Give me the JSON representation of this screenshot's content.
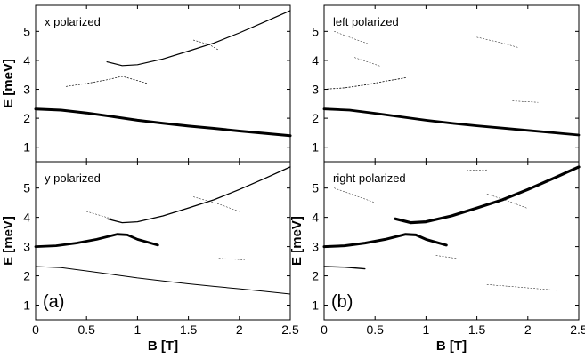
{
  "chart_data": [
    {
      "type": "scatter",
      "panel_text": "x polarized",
      "ylabel": "E [meV]",
      "xlabel": "",
      "corner_label": "",
      "xlim": [
        0,
        2.5
      ],
      "ylim": [
        0.5,
        5.9
      ],
      "y_ticks": [
        "1",
        "2",
        "3",
        "4",
        "5"
      ],
      "x_ticks": [],
      "series": [
        {
          "weight": 3.0,
          "points": [
            [
              0,
              2.32
            ],
            [
              0.25,
              2.28
            ],
            [
              0.5,
              2.18
            ],
            [
              0.75,
              2.06
            ],
            [
              1.0,
              1.93
            ],
            [
              1.25,
              1.83
            ],
            [
              1.5,
              1.73
            ],
            [
              1.75,
              1.65
            ],
            [
              2.0,
              1.56
            ],
            [
              2.25,
              1.48
            ],
            [
              2.5,
              1.4
            ]
          ]
        },
        {
          "weight": 0.7,
          "points": [
            [
              0.3,
              3.1
            ],
            [
              0.5,
              3.2
            ],
            [
              0.7,
              3.33
            ],
            [
              0.85,
              3.45
            ],
            [
              1.0,
              3.3
            ],
            [
              1.1,
              3.2
            ]
          ]
        },
        {
          "weight": 1.2,
          "points": [
            [
              0.7,
              3.95
            ],
            [
              0.85,
              3.82
            ],
            [
              1.0,
              3.85
            ],
            [
              1.25,
              4.05
            ],
            [
              1.5,
              4.32
            ],
            [
              1.75,
              4.6
            ],
            [
              2.0,
              4.95
            ],
            [
              2.25,
              5.33
            ],
            [
              2.5,
              5.72
            ]
          ]
        },
        {
          "weight": 0.6,
          "points": [
            [
              1.55,
              4.7
            ],
            [
              1.7,
              4.55
            ],
            [
              1.8,
              4.35
            ]
          ]
        }
      ]
    },
    {
      "type": "scatter",
      "panel_text": "left  polarized",
      "ylabel": "",
      "xlabel": "",
      "corner_label": "",
      "xlim": [
        0,
        2.5
      ],
      "ylim": [
        0.5,
        5.9
      ],
      "y_ticks": [
        "1",
        "2",
        "3",
        "4",
        "5"
      ],
      "x_ticks": [],
      "series": [
        {
          "weight": 2.8,
          "points": [
            [
              0,
              2.32
            ],
            [
              0.25,
              2.28
            ],
            [
              0.5,
              2.17
            ],
            [
              0.75,
              2.05
            ],
            [
              1.0,
              1.93
            ],
            [
              1.25,
              1.83
            ],
            [
              1.5,
              1.74
            ],
            [
              1.75,
              1.66
            ],
            [
              2.0,
              1.58
            ],
            [
              2.25,
              1.5
            ],
            [
              2.5,
              1.42
            ]
          ]
        },
        {
          "weight": 0.8,
          "points": [
            [
              0,
              3.0
            ],
            [
              0.2,
              3.05
            ],
            [
              0.4,
              3.15
            ],
            [
              0.6,
              3.28
            ],
            [
              0.8,
              3.4
            ]
          ]
        },
        {
          "weight": 0.5,
          "points": [
            [
              0.1,
              5.0
            ],
            [
              0.25,
              4.8
            ],
            [
              0.45,
              4.55
            ]
          ]
        },
        {
          "weight": 0.5,
          "points": [
            [
              0.3,
              4.1
            ],
            [
              0.55,
              3.8
            ]
          ]
        },
        {
          "weight": 0.5,
          "points": [
            [
              1.85,
              2.6
            ],
            [
              2.1,
              2.55
            ]
          ]
        },
        {
          "weight": 0.5,
          "points": [
            [
              1.5,
              4.8
            ],
            [
              1.75,
              4.6
            ],
            [
              1.9,
              4.45
            ]
          ]
        }
      ]
    },
    {
      "type": "scatter",
      "panel_text": "y  polarized",
      "ylabel": "E [meV]",
      "xlabel": "B [T]",
      "corner_label": "(a)",
      "xlim": [
        0,
        2.5
      ],
      "ylim": [
        0.5,
        5.9
      ],
      "y_ticks": [
        "1",
        "2",
        "3",
        "4",
        "5"
      ],
      "x_ticks": [
        "0",
        "0.5",
        "1",
        "1.5",
        "2",
        "2.5"
      ],
      "series": [
        {
          "weight": 2.8,
          "points": [
            [
              0,
              3.0
            ],
            [
              0.2,
              3.03
            ],
            [
              0.4,
              3.12
            ],
            [
              0.6,
              3.25
            ],
            [
              0.8,
              3.42
            ],
            [
              0.9,
              3.4
            ],
            [
              1.0,
              3.25
            ],
            [
              1.2,
              3.05
            ]
          ]
        },
        {
          "weight": 1.3,
          "points": [
            [
              0.7,
              3.95
            ],
            [
              0.85,
              3.82
            ],
            [
              1.0,
              3.85
            ],
            [
              1.25,
              4.05
            ],
            [
              1.5,
              4.32
            ],
            [
              1.75,
              4.6
            ],
            [
              2.0,
              4.95
            ],
            [
              2.25,
              5.33
            ],
            [
              2.5,
              5.72
            ]
          ]
        },
        {
          "weight": 1.0,
          "points": [
            [
              0,
              2.32
            ],
            [
              0.25,
              2.28
            ],
            [
              0.5,
              2.17
            ],
            [
              0.75,
              2.05
            ],
            [
              1.0,
              1.93
            ],
            [
              1.25,
              1.83
            ],
            [
              1.5,
              1.73
            ],
            [
              1.75,
              1.64
            ],
            [
              2.0,
              1.56
            ],
            [
              2.25,
              1.47
            ],
            [
              2.5,
              1.38
            ]
          ]
        },
        {
          "weight": 0.5,
          "points": [
            [
              0.5,
              4.2
            ],
            [
              0.75,
              3.95
            ]
          ]
        },
        {
          "weight": 0.5,
          "points": [
            [
              1.55,
              4.7
            ],
            [
              1.8,
              4.45
            ],
            [
              2.0,
              4.2
            ]
          ]
        },
        {
          "weight": 0.5,
          "points": [
            [
              1.8,
              2.6
            ],
            [
              2.05,
              2.55
            ]
          ]
        }
      ]
    },
    {
      "type": "scatter",
      "panel_text": "right  polarized",
      "ylabel": "E [meV]",
      "xlabel": "B [T]",
      "corner_label": "(b)",
      "xlim": [
        0,
        2.5
      ],
      "ylim": [
        0.5,
        5.9
      ],
      "y_ticks": [
        "1",
        "2",
        "3",
        "4",
        "5"
      ],
      "x_ticks": [
        "0",
        "0.5",
        "1",
        "1.5",
        "2",
        "2.5"
      ],
      "series": [
        {
          "weight": 3.0,
          "points": [
            [
              0,
              3.0
            ],
            [
              0.2,
              3.03
            ],
            [
              0.4,
              3.12
            ],
            [
              0.6,
              3.25
            ],
            [
              0.8,
              3.42
            ],
            [
              0.9,
              3.4
            ],
            [
              1.0,
              3.25
            ],
            [
              1.2,
              3.05
            ]
          ]
        },
        {
          "weight": 3.2,
          "points": [
            [
              0.7,
              3.95
            ],
            [
              0.85,
              3.82
            ],
            [
              1.0,
              3.85
            ],
            [
              1.25,
              4.05
            ],
            [
              1.5,
              4.32
            ],
            [
              1.75,
              4.6
            ],
            [
              2.0,
              4.95
            ],
            [
              2.25,
              5.33
            ],
            [
              2.5,
              5.72
            ]
          ]
        },
        {
          "weight": 1.4,
          "points": [
            [
              0,
              2.32
            ],
            [
              0.2,
              2.3
            ],
            [
              0.4,
              2.24
            ]
          ]
        },
        {
          "weight": 0.5,
          "points": [
            [
              0.1,
              5.0
            ],
            [
              0.3,
              4.75
            ],
            [
              0.5,
              4.5
            ]
          ]
        },
        {
          "weight": 0.5,
          "points": [
            [
              1.4,
              5.6
            ],
            [
              1.6,
              5.62
            ]
          ]
        },
        {
          "weight": 0.5,
          "points": [
            [
              1.6,
              4.8
            ],
            [
              1.85,
              4.5
            ],
            [
              2.0,
              4.3
            ]
          ]
        },
        {
          "weight": 0.5,
          "points": [
            [
              1.6,
              1.7
            ],
            [
              1.9,
              1.62
            ],
            [
              2.3,
              1.5
            ]
          ]
        },
        {
          "weight": 0.5,
          "points": [
            [
              1.1,
              2.7
            ],
            [
              1.3,
              2.6
            ]
          ]
        }
      ]
    }
  ]
}
